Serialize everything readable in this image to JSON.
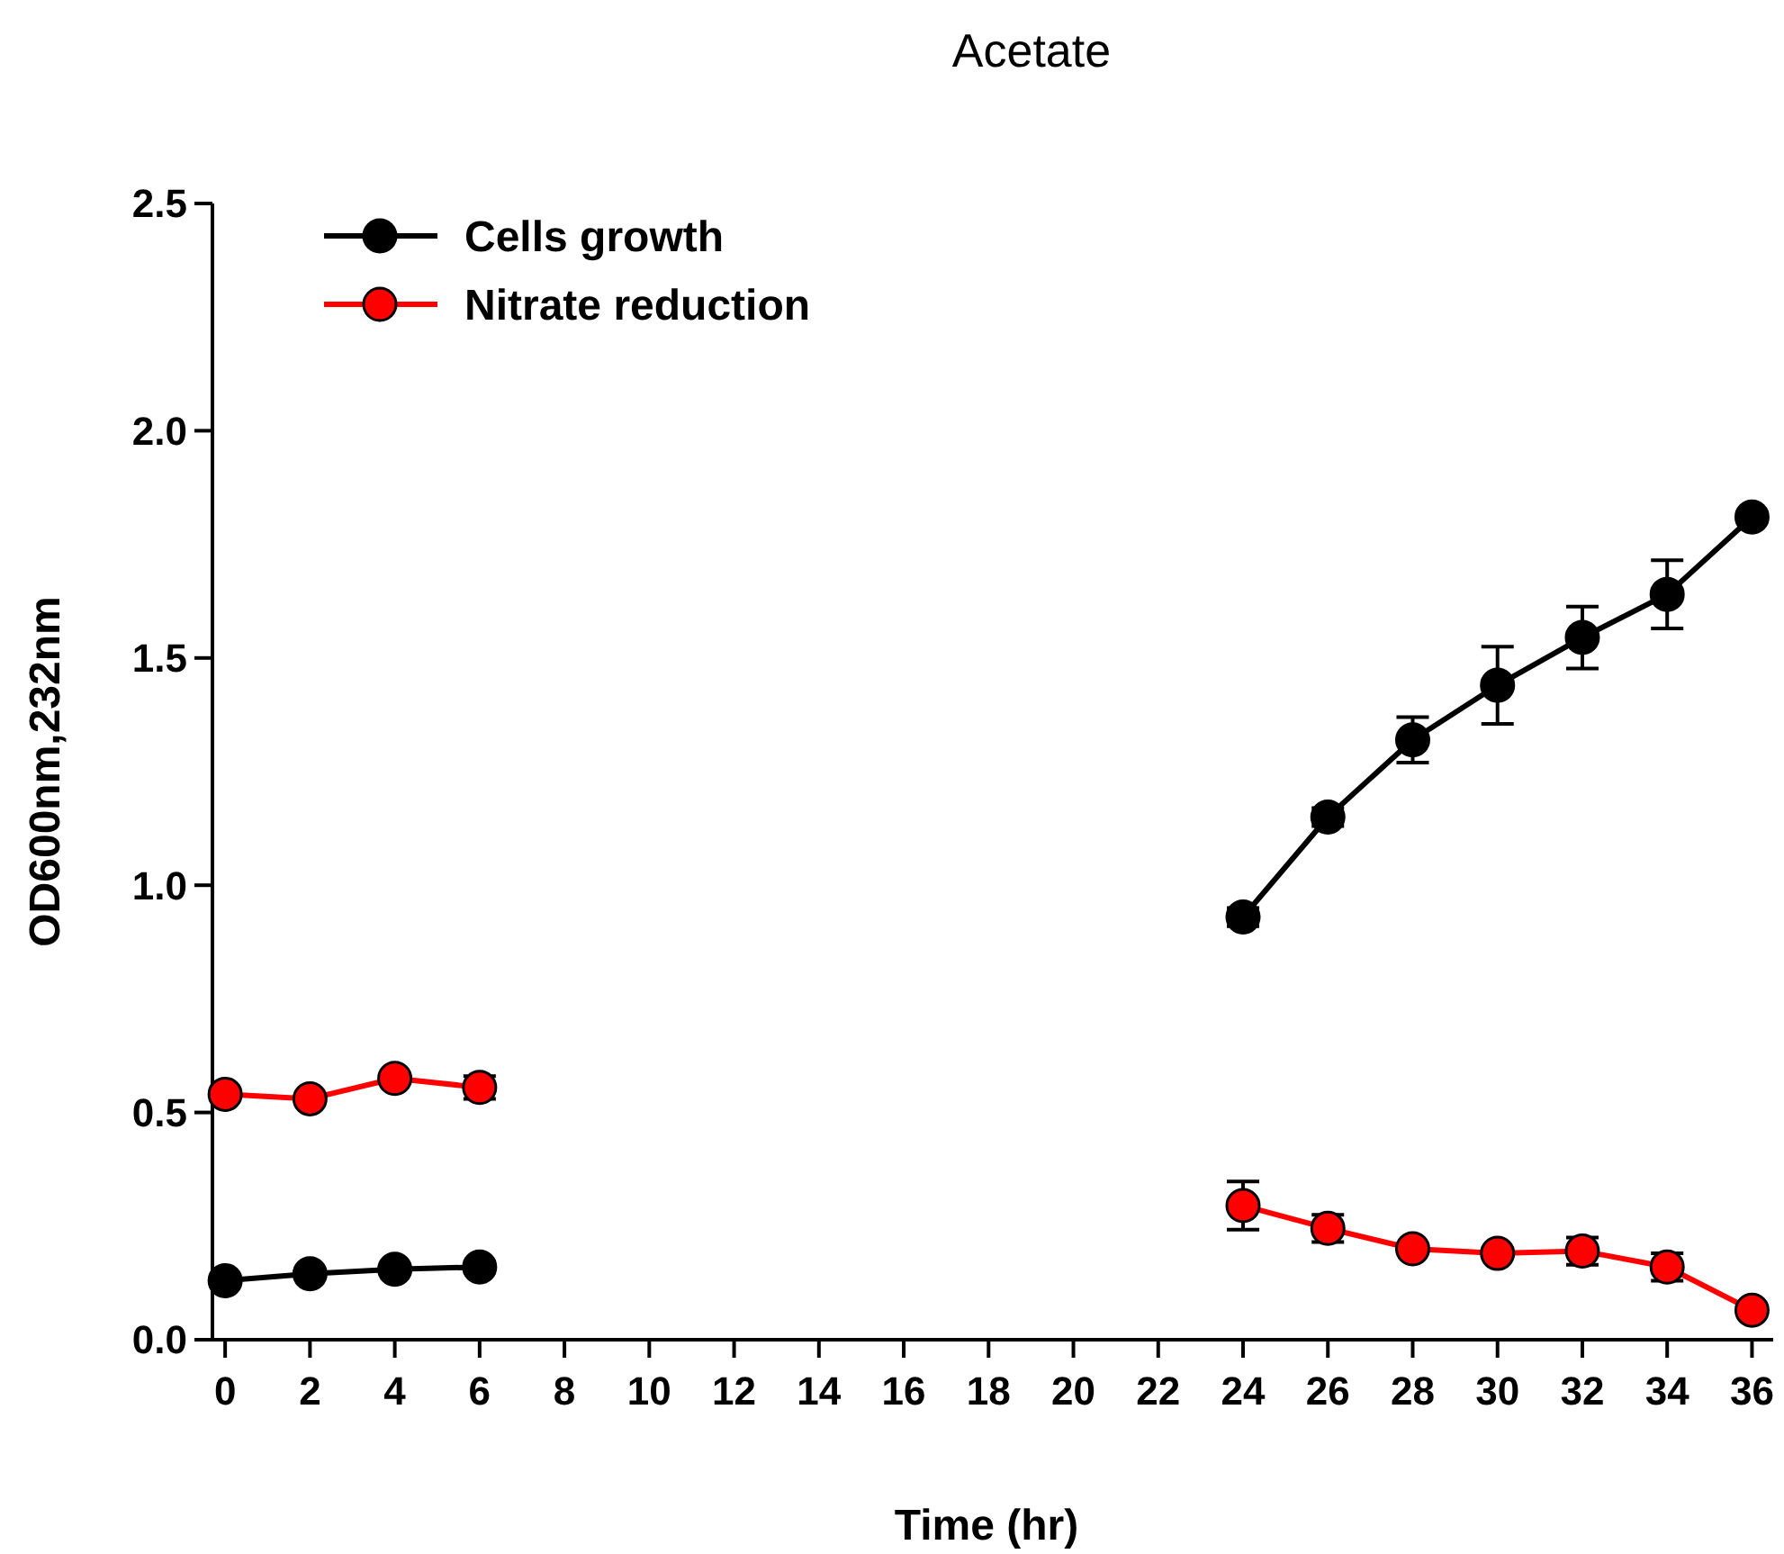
{
  "chart_data": {
    "type": "line",
    "title": "Acetate",
    "xlabel": "Time (hr)",
    "ylabel": "OD600nm,232nm",
    "series": [
      {
        "name": "Cells growth",
        "color": "#000000",
        "x": [
          0,
          2,
          4,
          6
        ],
        "values": [
          0.13,
          0.145,
          0.155,
          0.16
        ],
        "errors": [
          0.01,
          0.01,
          0.01,
          0.012
        ]
      },
      {
        "name": "Nitrate reduction",
        "color": "#ff0000",
        "x": [
          0,
          2,
          4,
          6
        ],
        "values": [
          0.54,
          0.53,
          0.575,
          0.555
        ],
        "errors": [
          null,
          null,
          null,
          0.025
        ]
      },
      {
        "color": "#000000",
        "x": [
          24,
          26,
          28,
          30,
          32,
          34,
          36
        ],
        "values": [
          0.93,
          1.15,
          1.32,
          1.44,
          1.545,
          1.64,
          1.81
        ],
        "errors": [
          0.02,
          0.02,
          0.05,
          0.085,
          0.068,
          0.075,
          0.01
        ]
      },
      {
        "color": "#ff0000",
        "x": [
          24,
          26,
          28,
          30,
          32,
          34,
          36
        ],
        "values": [
          0.295,
          0.245,
          0.2,
          0.19,
          0.195,
          0.16,
          0.065
        ],
        "errors": [
          0.053,
          0.03,
          null,
          null,
          0.03,
          0.03,
          null
        ]
      }
    ],
    "xlim": [
      -0.3,
      36.5
    ],
    "xticks": [
      0,
      2,
      4,
      6,
      8,
      10,
      12,
      14,
      16,
      18,
      20,
      22,
      24,
      26,
      28,
      30,
      32,
      34,
      36
    ],
    "ylim": [
      0,
      2.5
    ],
    "yticks": [
      {
        "value": 0,
        "label": "0.0"
      },
      {
        "value": 0.5,
        "label": "0.5"
      },
      {
        "value": 1,
        "label": "1.0"
      },
      {
        "value": 1.5,
        "label": "1.5"
      },
      {
        "value": 2,
        "label": "2.0"
      },
      {
        "value": 2.5,
        "label": "2.5"
      }
    ],
    "grid": false,
    "legend": "top left",
    "marker": "circle",
    "line_style": "solid"
  }
}
